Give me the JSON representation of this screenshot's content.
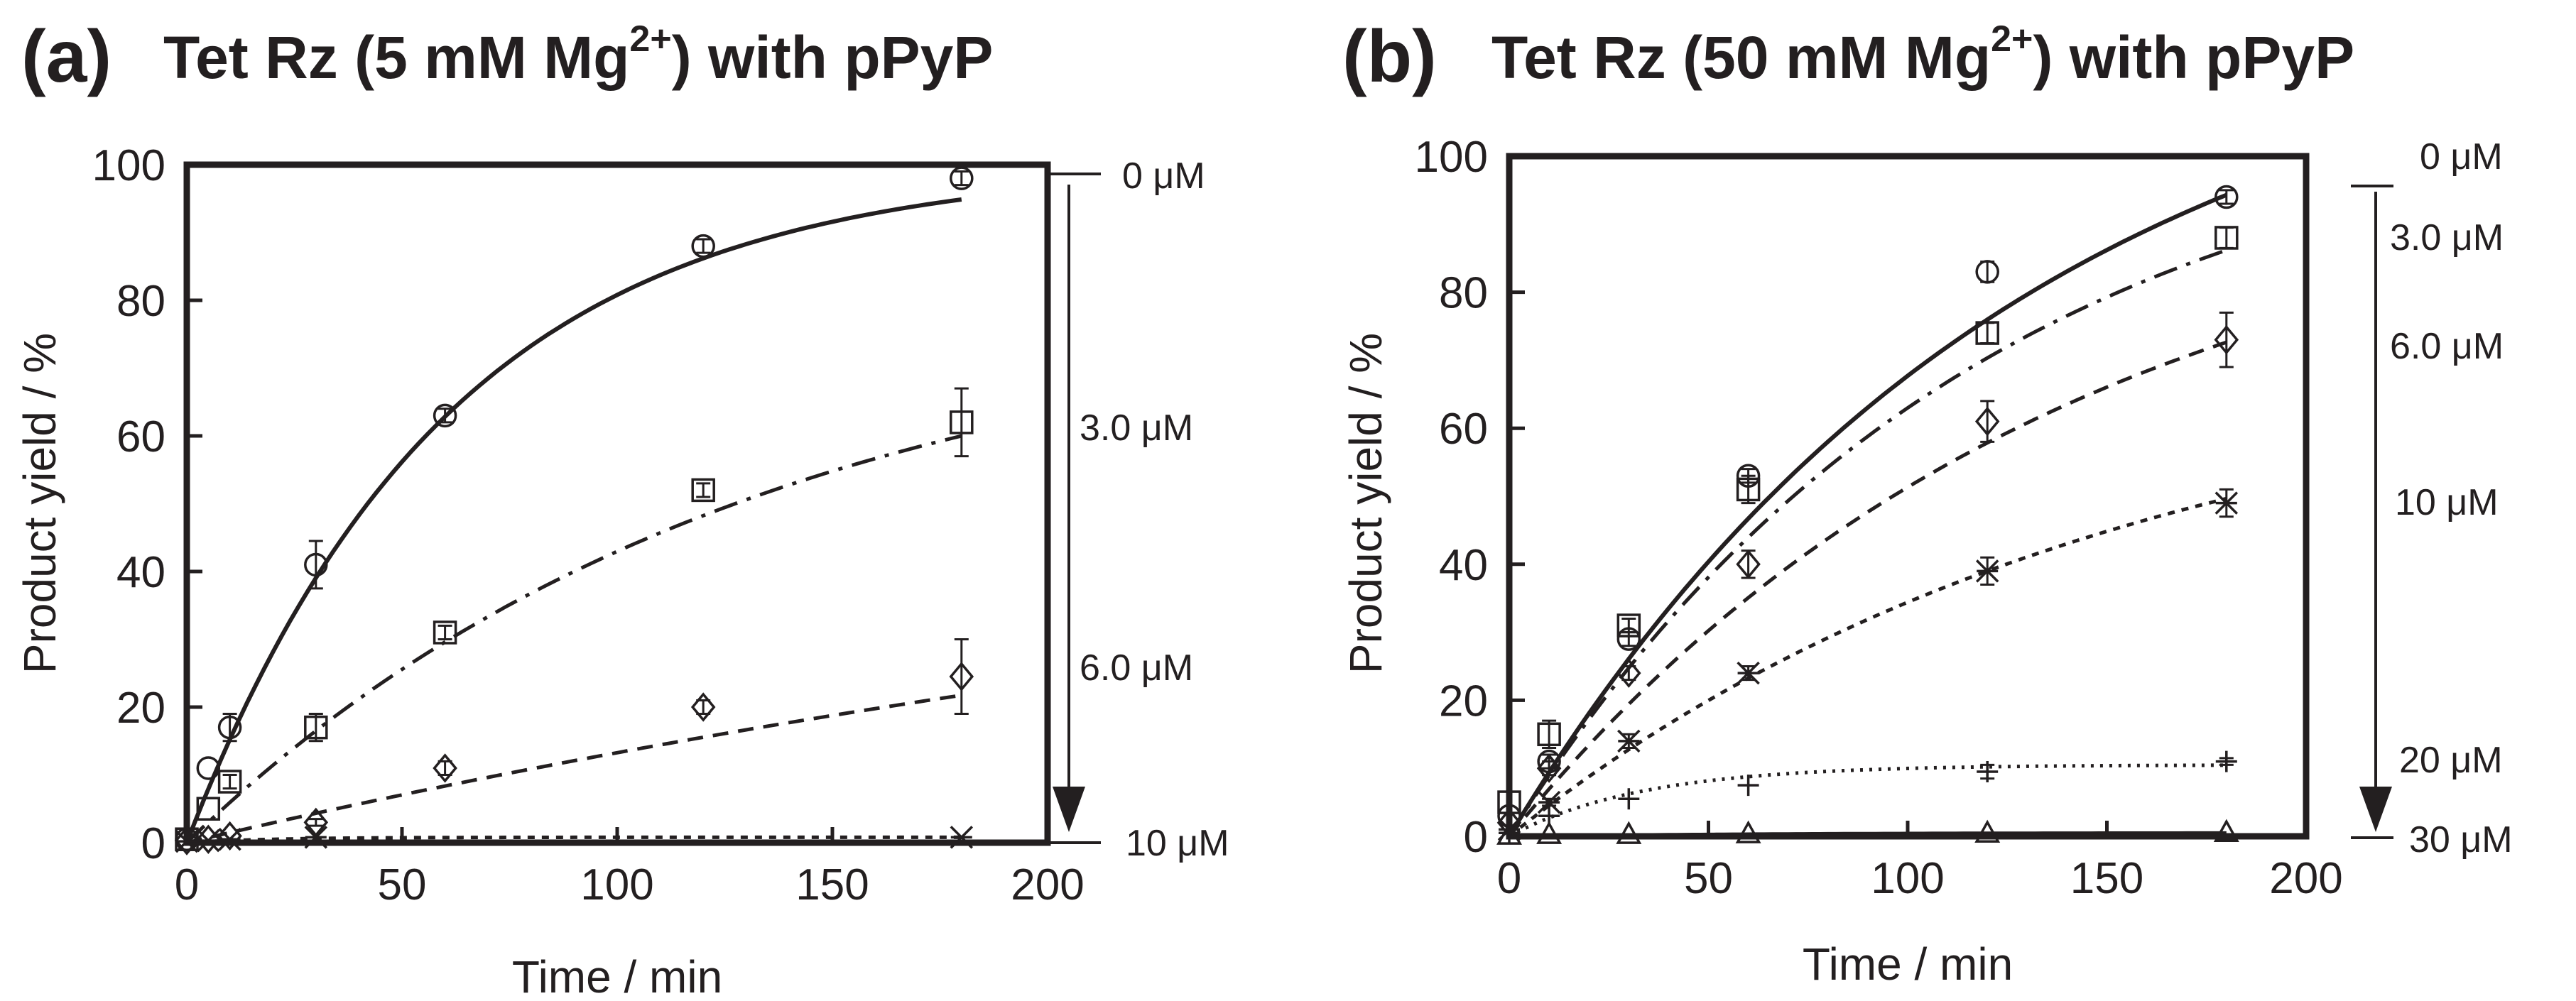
{
  "chart_data": [
    {
      "type": "scatter",
      "panel_label": "(a)",
      "title": "Tet Rz (5 mM Mg",
      "title_superscript": "2+",
      "title_suffix": ") with pPyP",
      "xlabel": "Time / min",
      "ylabel": "Product yield / %",
      "xlim": [
        0,
        200
      ],
      "ylim": [
        0,
        100
      ],
      "xticks": [
        0,
        50,
        100,
        150,
        200
      ],
      "yticks": [
        0,
        20,
        40,
        60,
        80,
        100
      ],
      "series": [
        {
          "name": "0 μM",
          "marker": "circle",
          "line": "solid",
          "x": [
            0,
            5,
            10,
            30,
            60,
            120,
            180
          ],
          "y": [
            0.5,
            11,
            17,
            41,
            63,
            88,
            98
          ],
          "err": [
            0,
            0,
            2,
            3.5,
            1,
            1,
            1
          ],
          "fit_max": 100,
          "fit_k": 0.0165
        },
        {
          "name": "3.0 μM",
          "marker": "square",
          "line": "dashdot",
          "x": [
            0,
            5,
            10,
            30,
            60,
            120,
            180
          ],
          "y": [
            0.5,
            5,
            9,
            17,
            31,
            52,
            62
          ],
          "err": [
            0,
            0,
            1,
            2,
            1,
            1,
            5
          ],
          "fit_max": 80,
          "fit_k": 0.0077
        },
        {
          "name": "6.0 μM",
          "marker": "diamond",
          "line": "dashed",
          "x": [
            0,
            5,
            10,
            30,
            60,
            120,
            180
          ],
          "y": [
            0.3,
            0.5,
            1,
            3,
            11,
            20,
            24.5
          ],
          "err": [
            0,
            0,
            0,
            0.5,
            1,
            1,
            5.5
          ],
          "fit_max": 60,
          "fit_k": 0.0025
        },
        {
          "name": "10 μM",
          "marker": "asterisk",
          "line": "dotted",
          "x": [
            0,
            5,
            10,
            30,
            180
          ],
          "y": [
            0.2,
            0.3,
            0.5,
            0.8,
            0.8
          ],
          "err": [
            0,
            0,
            0,
            0,
            0
          ],
          "fit_max": 0.8,
          "fit_k": 0.05
        }
      ],
      "legend": [
        "0 μM",
        "3.0 μM",
        "6.0 μM",
        "10 μM"
      ]
    },
    {
      "type": "scatter",
      "panel_label": "(b)",
      "title": "Tet Rz (50 mM Mg",
      "title_superscript": "2+",
      "title_suffix": ") with pPyP",
      "xlabel": "Time / min",
      "ylabel": "Product yield / %",
      "xlim": [
        0,
        200
      ],
      "ylim": [
        0,
        100
      ],
      "xticks": [
        0,
        50,
        100,
        150,
        200
      ],
      "yticks": [
        0,
        20,
        40,
        60,
        80,
        100
      ],
      "series": [
        {
          "name": "0 μM",
          "marker": "circle",
          "line": "solid",
          "x": [
            0,
            10,
            30,
            60,
            120,
            180
          ],
          "y": [
            3,
            11,
            29,
            53,
            83,
            94
          ],
          "err": [
            0,
            1,
            1,
            1,
            1.5,
            1
          ],
          "fit_max": 125,
          "fit_k": 0.0078
        },
        {
          "name": "3.0 μM",
          "marker": "square",
          "line": "dashdot",
          "x": [
            0,
            10,
            30,
            60,
            120,
            180
          ],
          "y": [
            5,
            15,
            31,
            51,
            74,
            88
          ],
          "err": [
            0,
            2,
            1,
            2,
            1.5,
            1.5
          ],
          "fit_max": 110,
          "fit_k": 0.0085
        },
        {
          "name": "6.0 μM",
          "marker": "diamond",
          "line": "dashed",
          "x": [
            0,
            10,
            30,
            60,
            120,
            180
          ],
          "y": [
            2,
            10,
            24,
            40,
            61,
            73
          ],
          "err": [
            0,
            1,
            1,
            2,
            3,
            4
          ],
          "fit_max": 100,
          "fit_k": 0.0072
        },
        {
          "name": "10 μM",
          "marker": "asterisk",
          "line": "dotted",
          "x": [
            0,
            10,
            30,
            60,
            120,
            180
          ],
          "y": [
            1,
            5,
            14,
            24,
            39,
            49
          ],
          "err": [
            0,
            0.5,
            1,
            1,
            2,
            2
          ],
          "fit_max": 72,
          "fit_k": 0.0065
        },
        {
          "name": "20 μM",
          "marker": "plus",
          "line": "finedot",
          "x": [
            0,
            10,
            30,
            60,
            120,
            180
          ],
          "y": [
            0.5,
            3,
            5.5,
            7.5,
            9.5,
            11
          ],
          "err": [
            0,
            0,
            0,
            0,
            1,
            0.5
          ],
          "fit_max": 10.5,
          "fit_k": 0.03
        },
        {
          "name": "30 μM",
          "marker": "triangle",
          "line": "solid-thin",
          "x": [
            0,
            10,
            30,
            60,
            120,
            180
          ],
          "y": [
            0.2,
            0.3,
            0.3,
            0.4,
            0.5,
            0.6
          ],
          "err": [
            0,
            0,
            0,
            0,
            0,
            0
          ],
          "fit_max": 0.6,
          "fit_k": 0.02
        }
      ],
      "legend": [
        "0 μM",
        "3.0 μM",
        "6.0 μM",
        "10 μM",
        "20 μM",
        "30 μM"
      ]
    }
  ]
}
